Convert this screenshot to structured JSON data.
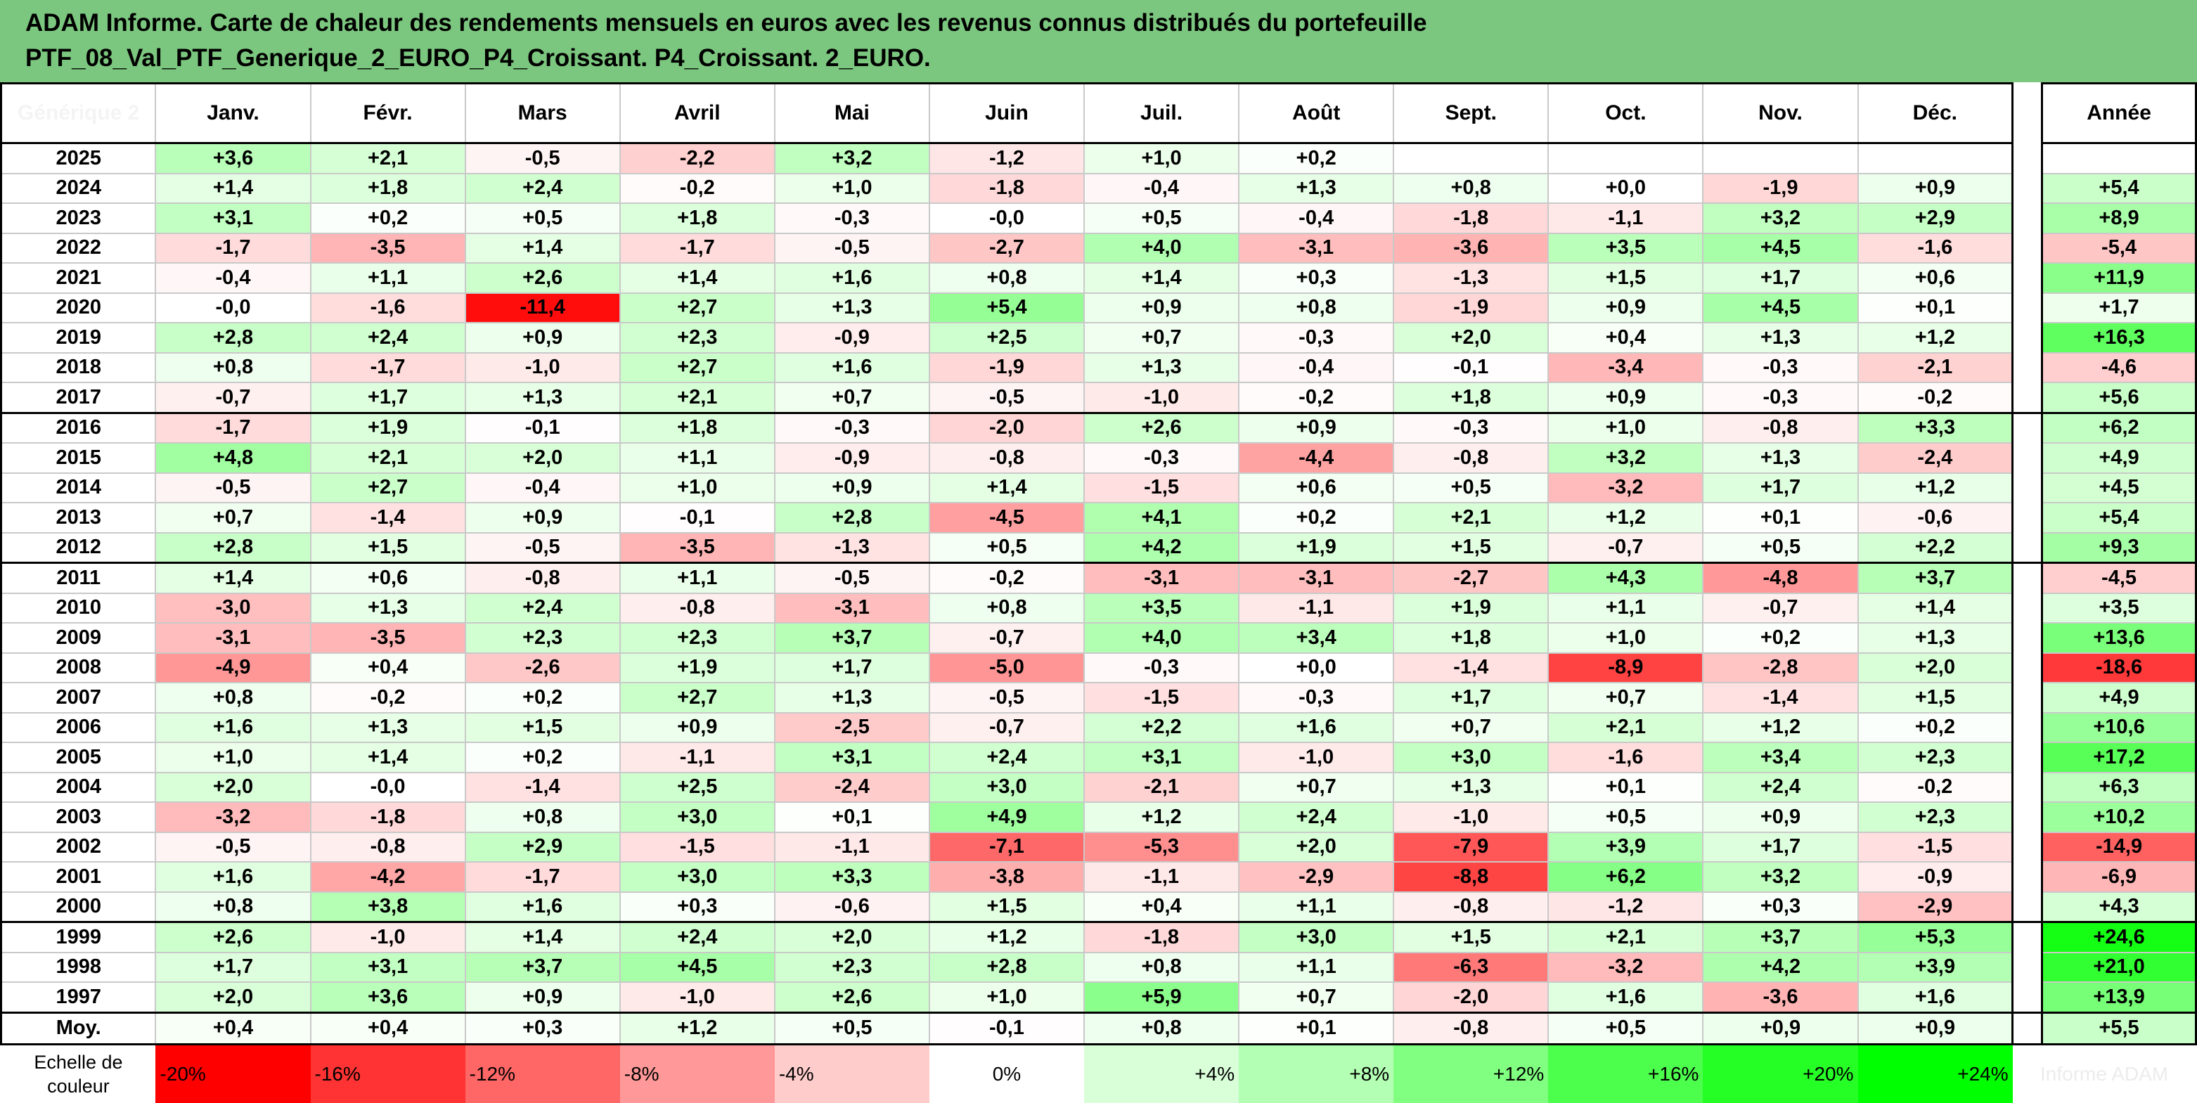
{
  "title": {
    "line1": "ADAM Informe. Carte de chaleur des rendements mensuels en euros avec les revenus connus distribués du portefeuille",
    "line2": "PTF_08_Val_PTF_Generique_2_EURO_P4_Croissant. P4_Croissant. 2_EURO."
  },
  "chart_data": {
    "type": "heatmap",
    "corner_label": "Générique 2",
    "columns": [
      "Janv.",
      "Févr.",
      "Mars",
      "Avril",
      "Mai",
      "Juin",
      "Juil.",
      "Août",
      "Sept.",
      "Oct.",
      "Nov.",
      "Déc."
    ],
    "annual_label": "Année",
    "rows": [
      {
        "year": "2025",
        "months": [
          "+3,6",
          "+2,1",
          "-0,5",
          "-2,2",
          "+3,2",
          "-1,2",
          "+1,0",
          "+0,2",
          "",
          "",
          "",
          ""
        ],
        "annual": ""
      },
      {
        "year": "2024",
        "months": [
          "+1,4",
          "+1,8",
          "+2,4",
          "-0,2",
          "+1,0",
          "-1,8",
          "-0,4",
          "+1,3",
          "+0,8",
          "+0,0",
          "-1,9",
          "+0,9"
        ],
        "annual": "+5,4"
      },
      {
        "year": "2023",
        "months": [
          "+3,1",
          "+0,2",
          "+0,5",
          "+1,8",
          "-0,3",
          "-0,0",
          "+0,5",
          "-0,4",
          "-1,8",
          "-1,1",
          "+3,2",
          "+2,9"
        ],
        "annual": "+8,9"
      },
      {
        "year": "2022",
        "months": [
          "-1,7",
          "-3,5",
          "+1,4",
          "-1,7",
          "-0,5",
          "-2,7",
          "+4,0",
          "-3,1",
          "-3,6",
          "+3,5",
          "+4,5",
          "-1,6"
        ],
        "annual": "-5,4"
      },
      {
        "year": "2021",
        "months": [
          "-0,4",
          "+1,1",
          "+2,6",
          "+1,4",
          "+1,6",
          "+0,8",
          "+1,4",
          "+0,3",
          "-1,3",
          "+1,5",
          "+1,7",
          "+0,6"
        ],
        "annual": "+11,9"
      },
      {
        "year": "2020",
        "months": [
          "-0,0",
          "-1,6",
          "-11,4",
          "+2,7",
          "+1,3",
          "+5,4",
          "+0,9",
          "+0,8",
          "-1,9",
          "+0,9",
          "+4,5",
          "+0,1"
        ],
        "annual": "+1,7"
      },
      {
        "year": "2019",
        "months": [
          "+2,8",
          "+2,4",
          "+0,9",
          "+2,3",
          "-0,9",
          "+2,5",
          "+0,7",
          "-0,3",
          "+2,0",
          "+0,4",
          "+1,3",
          "+1,2"
        ],
        "annual": "+16,3"
      },
      {
        "year": "2018",
        "months": [
          "+0,8",
          "-1,7",
          "-1,0",
          "+2,7",
          "+1,6",
          "-1,9",
          "+1,3",
          "-0,4",
          "-0,1",
          "-3,4",
          "-0,3",
          "-2,1"
        ],
        "annual": "-4,6"
      },
      {
        "year": "2017",
        "months": [
          "-0,7",
          "+1,7",
          "+1,3",
          "+2,1",
          "+0,7",
          "-0,5",
          "-1,0",
          "-0,2",
          "+1,8",
          "+0,9",
          "-0,3",
          "-0,2"
        ],
        "annual": "+5,6"
      },
      {
        "year": "2016",
        "months": [
          "-1,7",
          "+1,9",
          "-0,1",
          "+1,8",
          "-0,3",
          "-2,0",
          "+2,6",
          "+0,9",
          "-0,3",
          "+1,0",
          "-0,8",
          "+3,3"
        ],
        "annual": "+6,2"
      },
      {
        "year": "2015",
        "months": [
          "+4,8",
          "+2,1",
          "+2,0",
          "+1,1",
          "-0,9",
          "-0,8",
          "-0,3",
          "-4,4",
          "-0,8",
          "+3,2",
          "+1,3",
          "-2,4"
        ],
        "annual": "+4,9"
      },
      {
        "year": "2014",
        "months": [
          "-0,5",
          "+2,7",
          "-0,4",
          "+1,0",
          "+0,9",
          "+1,4",
          "-1,5",
          "+0,6",
          "+0,5",
          "-3,2",
          "+1,7",
          "+1,2"
        ],
        "annual": "+4,5"
      },
      {
        "year": "2013",
        "months": [
          "+0,7",
          "-1,4",
          "+0,9",
          "-0,1",
          "+2,8",
          "-4,5",
          "+4,1",
          "+0,2",
          "+2,1",
          "+1,2",
          "+0,1",
          "-0,6"
        ],
        "annual": "+5,4"
      },
      {
        "year": "2012",
        "months": [
          "+2,8",
          "+1,5",
          "-0,5",
          "-3,5",
          "-1,3",
          "+0,5",
          "+4,2",
          "+1,9",
          "+1,5",
          "-0,7",
          "+0,5",
          "+2,2"
        ],
        "annual": "+9,3"
      },
      {
        "year": "2011",
        "months": [
          "+1,4",
          "+0,6",
          "-0,8",
          "+1,1",
          "-0,5",
          "-0,2",
          "-3,1",
          "-3,1",
          "-2,7",
          "+4,3",
          "-4,8",
          "+3,7"
        ],
        "annual": "-4,5"
      },
      {
        "year": "2010",
        "months": [
          "-3,0",
          "+1,3",
          "+2,4",
          "-0,8",
          "-3,1",
          "+0,8",
          "+3,5",
          "-1,1",
          "+1,9",
          "+1,1",
          "-0,7",
          "+1,4"
        ],
        "annual": "+3,5"
      },
      {
        "year": "2009",
        "months": [
          "-3,1",
          "-3,5",
          "+2,3",
          "+2,3",
          "+3,7",
          "-0,7",
          "+4,0",
          "+3,4",
          "+1,8",
          "+1,0",
          "+0,2",
          "+1,3"
        ],
        "annual": "+13,6"
      },
      {
        "year": "2008",
        "months": [
          "-4,9",
          "+0,4",
          "-2,6",
          "+1,9",
          "+1,7",
          "-5,0",
          "-0,3",
          "+0,0",
          "-1,4",
          "-8,9",
          "-2,8",
          "+2,0"
        ],
        "annual": "-18,6"
      },
      {
        "year": "2007",
        "months": [
          "+0,8",
          "-0,2",
          "+0,2",
          "+2,7",
          "+1,3",
          "-0,5",
          "-1,5",
          "-0,3",
          "+1,7",
          "+0,7",
          "-1,4",
          "+1,5"
        ],
        "annual": "+4,9"
      },
      {
        "year": "2006",
        "months": [
          "+1,6",
          "+1,3",
          "+1,5",
          "+0,9",
          "-2,5",
          "-0,7",
          "+2,2",
          "+1,6",
          "+0,7",
          "+2,1",
          "+1,2",
          "+0,2"
        ],
        "annual": "+10,6"
      },
      {
        "year": "2005",
        "months": [
          "+1,0",
          "+1,4",
          "+0,2",
          "-1,1",
          "+3,1",
          "+2,4",
          "+3,1",
          "-1,0",
          "+3,0",
          "-1,6",
          "+3,4",
          "+2,3"
        ],
        "annual": "+17,2"
      },
      {
        "year": "2004",
        "months": [
          "+2,0",
          "-0,0",
          "-1,4",
          "+2,5",
          "-2,4",
          "+3,0",
          "-2,1",
          "+0,7",
          "+1,3",
          "+0,1",
          "+2,4",
          "-0,2"
        ],
        "annual": "+6,3"
      },
      {
        "year": "2003",
        "months": [
          "-3,2",
          "-1,8",
          "+0,8",
          "+3,0",
          "+0,1",
          "+4,9",
          "+1,2",
          "+2,4",
          "-1,0",
          "+0,5",
          "+0,9",
          "+2,3"
        ],
        "annual": "+10,2"
      },
      {
        "year": "2002",
        "months": [
          "-0,5",
          "-0,8",
          "+2,9",
          "-1,5",
          "-1,1",
          "-7,1",
          "-5,3",
          "+2,0",
          "-7,9",
          "+3,9",
          "+1,7",
          "-1,5"
        ],
        "annual": "-14,9"
      },
      {
        "year": "2001",
        "months": [
          "+1,6",
          "-4,2",
          "-1,7",
          "+3,0",
          "+3,3",
          "-3,8",
          "-1,1",
          "-2,9",
          "-8,8",
          "+6,2",
          "+3,2",
          "-0,9"
        ],
        "annual": "-6,9"
      },
      {
        "year": "2000",
        "months": [
          "+0,8",
          "+3,8",
          "+1,6",
          "+0,3",
          "-0,6",
          "+1,5",
          "+0,4",
          "+1,1",
          "-0,8",
          "-1,2",
          "+0,3",
          "-2,9"
        ],
        "annual": "+4,3"
      },
      {
        "year": "1999",
        "months": [
          "+2,6",
          "-1,0",
          "+1,4",
          "+2,4",
          "+2,0",
          "+1,2",
          "-1,8",
          "+3,0",
          "+1,5",
          "+2,1",
          "+3,7",
          "+5,3"
        ],
        "annual": "+24,6"
      },
      {
        "year": "1998",
        "months": [
          "+1,7",
          "+3,1",
          "+3,7",
          "+4,5",
          "+2,3",
          "+2,8",
          "+0,8",
          "+1,1",
          "-6,3",
          "-3,2",
          "+4,2",
          "+3,9"
        ],
        "annual": "+21,0"
      },
      {
        "year": "1997",
        "months": [
          "+2,0",
          "+3,6",
          "+0,9",
          "-1,0",
          "+2,6",
          "+1,0",
          "+5,9",
          "+0,7",
          "-2,0",
          "+1,6",
          "-3,6",
          "+1,6"
        ],
        "annual": "+13,9"
      }
    ],
    "average": {
      "label": "Moy.",
      "months": [
        "+0,4",
        "+0,4",
        "+0,3",
        "+1,2",
        "+0,5",
        "-0,1",
        "+0,8",
        "+0,1",
        "-0,8",
        "+0,5",
        "+0,9",
        "+0,9"
      ],
      "annual": "+5,5"
    },
    "scale": {
      "label": "Echelle de couleur",
      "stops": [
        "-20%",
        "-16%",
        "-12%",
        "-8%",
        "-4%",
        "0%",
        "+4%",
        "+8%",
        "+12%",
        "+16%",
        "+20%",
        "+24%"
      ],
      "trailing": "Informe ADAM"
    }
  }
}
